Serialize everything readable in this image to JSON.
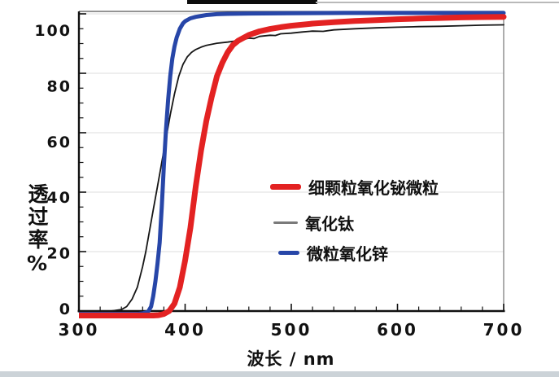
{
  "figure": {
    "background_color": "#ffffff",
    "bottom_strip_color": "#ccd3d8",
    "plot_border_color": "#888888"
  },
  "chart_data": {
    "type": "line",
    "title": "",
    "xlabel": "波长 / nm",
    "ylabel": "透过率%",
    "xlim": [
      300,
      700
    ],
    "ylim": [
      0,
      100
    ],
    "xticks": [
      "300",
      "400",
      "500",
      "600",
      "700"
    ],
    "xtick_values": [
      300,
      400,
      500,
      600,
      700
    ],
    "yticks": [
      "0",
      "20",
      "40",
      "60",
      "80",
      "100"
    ],
    "ytick_values": [
      0,
      20,
      40,
      60,
      80,
      100
    ],
    "x_minor_step": 20,
    "y_minor_step": 5,
    "grid": "horizontal light gray, on",
    "legend_position": "inside middle-right",
    "series": [
      {
        "key": "titanium-oxide",
        "name": "氧化钛",
        "color": "#161616",
        "legend_swatch_color": "#7a7a7a",
        "width": 1.8,
        "points": [
          [
            300,
            0
          ],
          [
            310,
            0
          ],
          [
            320,
            0
          ],
          [
            330,
            0
          ],
          [
            340,
            0.5
          ],
          [
            345,
            1.5
          ],
          [
            350,
            4
          ],
          [
            355,
            8
          ],
          [
            360,
            15
          ],
          [
            363,
            20
          ],
          [
            366,
            26
          ],
          [
            370,
            34
          ],
          [
            374,
            42
          ],
          [
            378,
            50
          ],
          [
            382,
            58
          ],
          [
            386,
            66
          ],
          [
            390,
            73
          ],
          [
            394,
            79
          ],
          [
            398,
            83
          ],
          [
            402,
            85.5
          ],
          [
            406,
            87
          ],
          [
            410,
            88
          ],
          [
            415,
            88.8
          ],
          [
            420,
            89.4
          ],
          [
            430,
            90.1
          ],
          [
            440,
            90.5
          ],
          [
            450,
            91
          ],
          [
            460,
            91.8
          ],
          [
            465,
            91.7
          ],
          [
            470,
            92.4
          ],
          [
            480,
            92.8
          ],
          [
            485,
            92.7
          ],
          [
            490,
            93.3
          ],
          [
            500,
            93.5
          ],
          [
            510,
            93.9
          ],
          [
            520,
            94.2
          ],
          [
            530,
            94.1
          ],
          [
            540,
            94.6
          ],
          [
            560,
            95
          ],
          [
            580,
            95.3
          ],
          [
            600,
            95.5
          ],
          [
            620,
            95.7
          ],
          [
            640,
            95.8
          ],
          [
            660,
            96
          ],
          [
            680,
            96.2
          ],
          [
            700,
            96.3
          ]
        ]
      },
      {
        "key": "zinc-oxide",
        "name": "微粒氧化锌",
        "color": "#2746a8",
        "legend_swatch_color": "#2746a8",
        "width": 5,
        "points": [
          [
            300,
            -1
          ],
          [
            320,
            -1
          ],
          [
            340,
            -1
          ],
          [
            355,
            -1
          ],
          [
            360,
            -0.8
          ],
          [
            365,
            -0.3
          ],
          [
            368,
            1.5
          ],
          [
            370,
            5
          ],
          [
            372,
            10
          ],
          [
            374,
            16
          ],
          [
            376,
            23
          ],
          [
            378,
            35
          ],
          [
            380,
            49
          ],
          [
            382,
            61
          ],
          [
            384,
            71
          ],
          [
            386,
            79
          ],
          [
            388,
            85
          ],
          [
            390,
            89
          ],
          [
            392,
            92
          ],
          [
            395,
            95
          ],
          [
            398,
            96.8
          ],
          [
            400,
            97.5
          ],
          [
            405,
            98.5
          ],
          [
            410,
            99
          ],
          [
            420,
            99.6
          ],
          [
            430,
            99.9
          ],
          [
            440,
            100
          ],
          [
            460,
            100.1
          ],
          [
            500,
            100.2
          ],
          [
            550,
            100.3
          ],
          [
            600,
            100.3
          ],
          [
            650,
            100.3
          ],
          [
            700,
            100.3
          ]
        ]
      },
      {
        "key": "bismuth-oxide",
        "name": "细颗粒氧化铋微粒",
        "color": "#e32222",
        "legend_swatch_color": "#e32222",
        "width": 7,
        "points": [
          [
            300,
            -1.5
          ],
          [
            320,
            -1.5
          ],
          [
            340,
            -1.5
          ],
          [
            360,
            -1.5
          ],
          [
            370,
            -1.5
          ],
          [
            375,
            -1.4
          ],
          [
            380,
            -1
          ],
          [
            385,
            0
          ],
          [
            390,
            2.5
          ],
          [
            395,
            8
          ],
          [
            400,
            17
          ],
          [
            405,
            28
          ],
          [
            410,
            42
          ],
          [
            415,
            54
          ],
          [
            420,
            64
          ],
          [
            425,
            72
          ],
          [
            430,
            79
          ],
          [
            435,
            83.5
          ],
          [
            440,
            87
          ],
          [
            445,
            89.5
          ],
          [
            450,
            91
          ],
          [
            460,
            92.9
          ],
          [
            470,
            94.1
          ],
          [
            480,
            94.9
          ],
          [
            490,
            95.5
          ],
          [
            500,
            96
          ],
          [
            520,
            96.7
          ],
          [
            540,
            97.2
          ],
          [
            560,
            97.6
          ],
          [
            580,
            97.9
          ],
          [
            600,
            98.2
          ],
          [
            620,
            98.4
          ],
          [
            640,
            98.6
          ],
          [
            660,
            98.8
          ],
          [
            680,
            98.9
          ],
          [
            700,
            99
          ]
        ]
      }
    ]
  },
  "legend": {
    "row1_label": "细颗粒氧化铋微粒",
    "row2_label": "氧化钛",
    "row3_label": "微粒氧化锌"
  }
}
